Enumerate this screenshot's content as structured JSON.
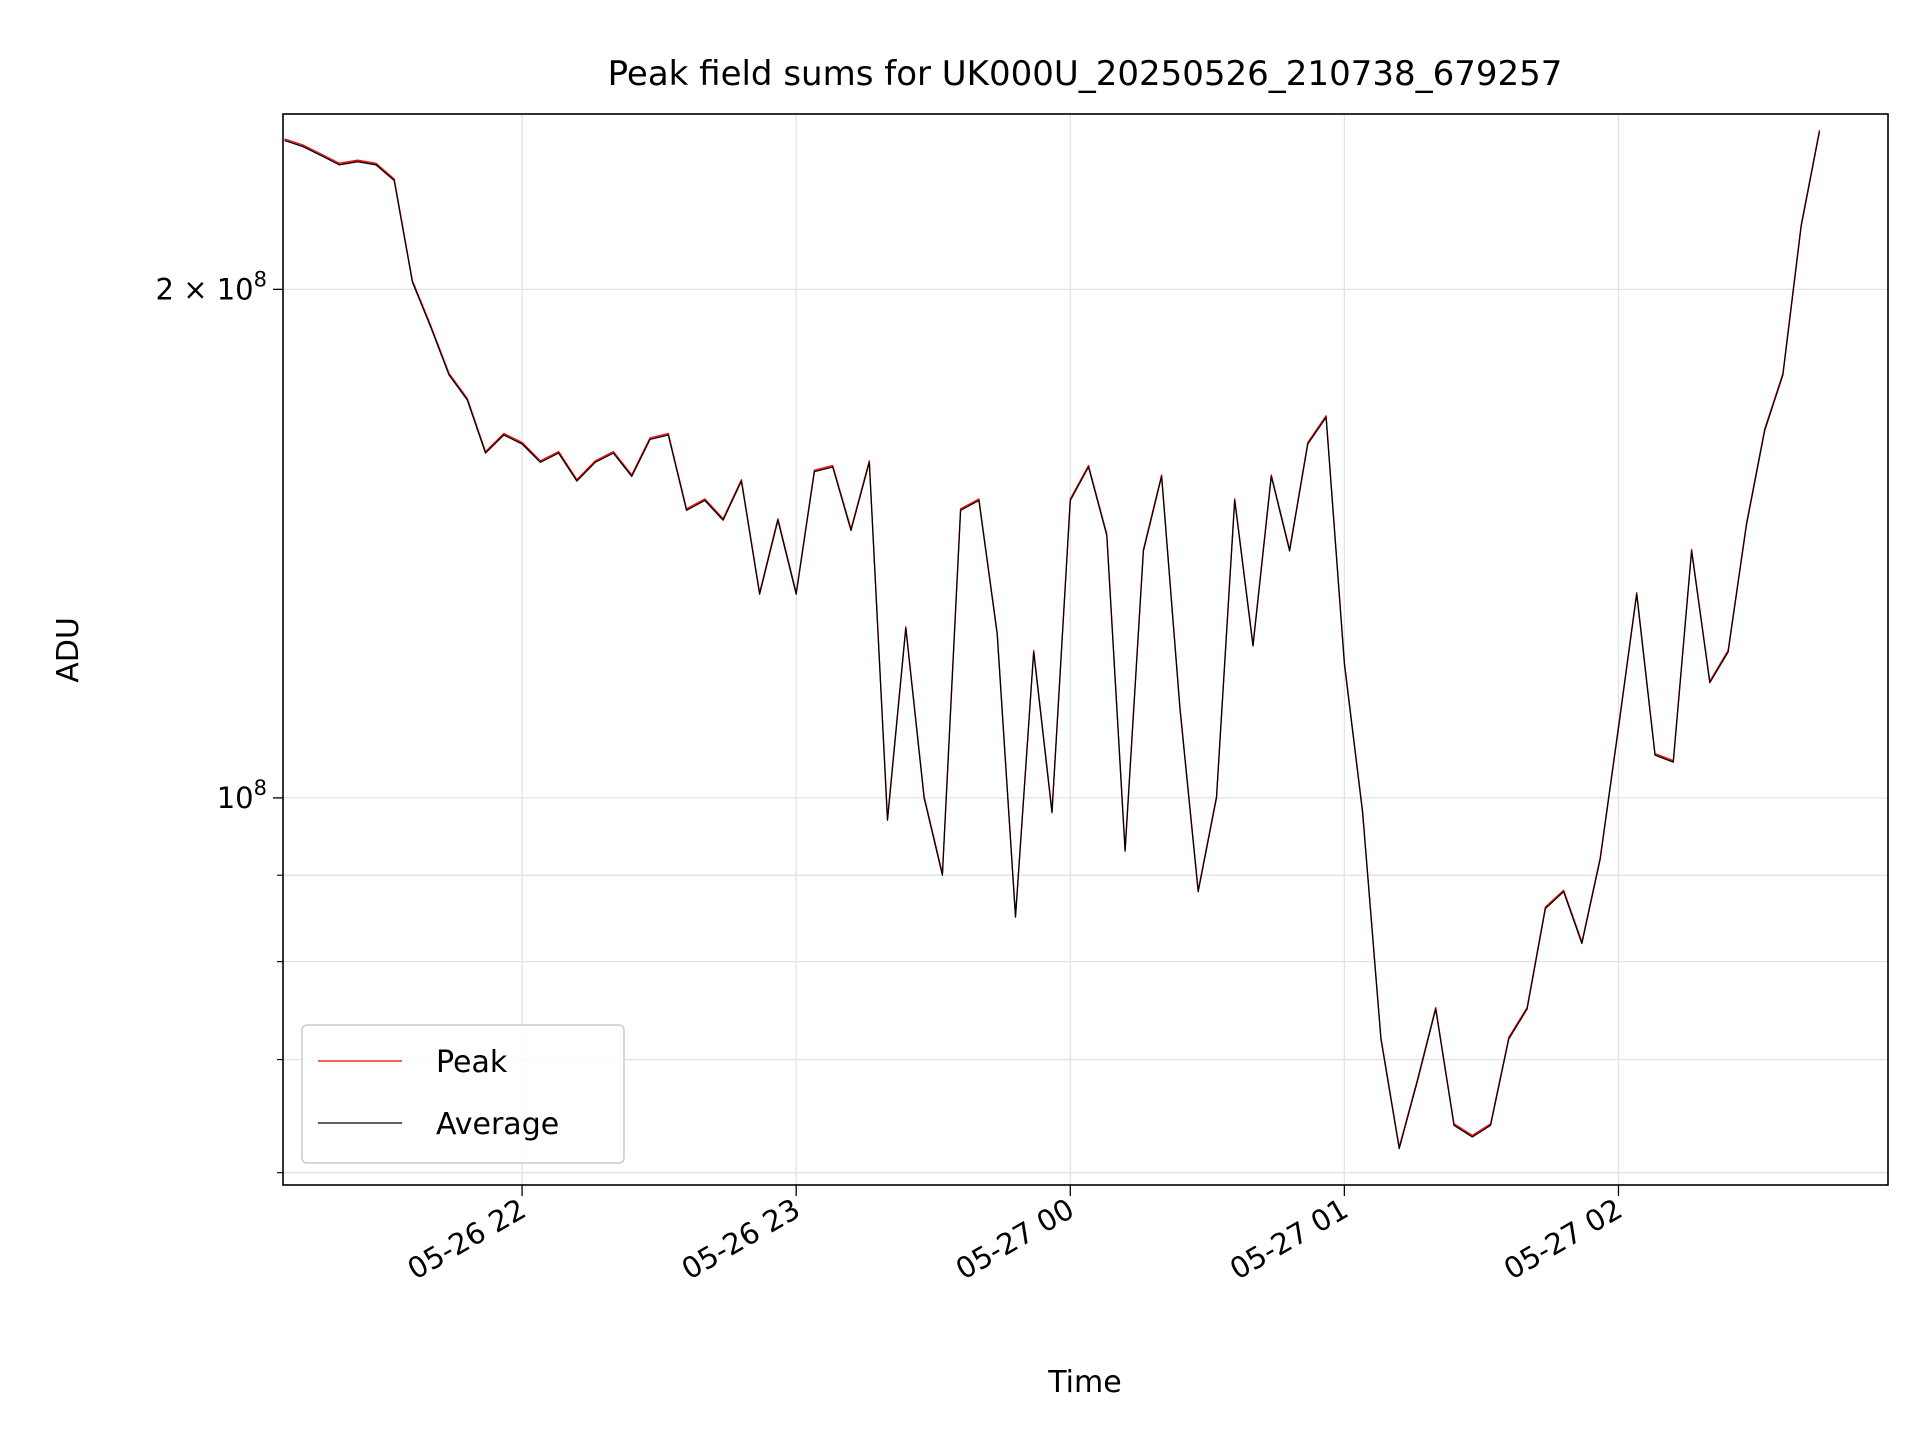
{
  "chart_data": {
    "type": "line",
    "title": "Peak field sums for UK000U_20250526_210738_679257",
    "xlabel": "Time",
    "ylabel": "ADU",
    "y_scale": "log",
    "ylim": [
      59000000,
      254000000
    ],
    "xlim": [
      "2025-05-26 21:07:40",
      "2025-05-27 02:59:00"
    ],
    "grid": true,
    "legend_position": "lower-left",
    "x_ticks": [
      {
        "t": "2025-05-26 22:00",
        "label": "05-26 22"
      },
      {
        "t": "2025-05-26 23:00",
        "label": "05-26 23"
      },
      {
        "t": "2025-05-27 00:00",
        "label": "05-27 00"
      },
      {
        "t": "2025-05-27 01:00",
        "label": "05-27 01"
      },
      {
        "t": "2025-05-27 02:00",
        "label": "05-27 02"
      }
    ],
    "y_major_ticks": [
      {
        "v": 100000000,
        "base": "10",
        "exp": "8",
        "coef": ""
      },
      {
        "v": 200000000,
        "base": "10",
        "exp": "8",
        "coef": "2 × "
      }
    ],
    "y_minor_ticks": [
      60000000,
      70000000,
      80000000,
      90000000
    ],
    "series": [
      {
        "name": "Peak",
        "color": "#ff0000"
      },
      {
        "name": "Average",
        "color": "#000000"
      }
    ],
    "x": [
      "2025-05-26 21:08",
      "2025-05-26 21:12",
      "2025-05-26 21:16",
      "2025-05-26 21:20",
      "2025-05-26 21:24",
      "2025-05-26 21:28",
      "2025-05-26 21:32",
      "2025-05-26 21:36",
      "2025-05-26 21:40",
      "2025-05-26 21:44",
      "2025-05-26 21:48",
      "2025-05-26 21:52",
      "2025-05-26 21:56",
      "2025-05-26 22:00",
      "2025-05-26 22:04",
      "2025-05-26 22:08",
      "2025-05-26 22:12",
      "2025-05-26 22:16",
      "2025-05-26 22:20",
      "2025-05-26 22:24",
      "2025-05-26 22:28",
      "2025-05-26 22:32",
      "2025-05-26 22:36",
      "2025-05-26 22:40",
      "2025-05-26 22:44",
      "2025-05-26 22:48",
      "2025-05-26 22:52",
      "2025-05-26 22:56",
      "2025-05-26 23:00",
      "2025-05-26 23:04",
      "2025-05-26 23:08",
      "2025-05-26 23:12",
      "2025-05-26 23:16",
      "2025-05-26 23:20",
      "2025-05-26 23:24",
      "2025-05-26 23:28",
      "2025-05-26 23:32",
      "2025-05-26 23:36",
      "2025-05-26 23:40",
      "2025-05-26 23:44",
      "2025-05-26 23:48",
      "2025-05-26 23:52",
      "2025-05-26 23:56",
      "2025-05-27 00:00",
      "2025-05-27 00:04",
      "2025-05-27 00:08",
      "2025-05-27 00:12",
      "2025-05-27 00:16",
      "2025-05-27 00:20",
      "2025-05-27 00:24",
      "2025-05-27 00:28",
      "2025-05-27 00:32",
      "2025-05-27 00:36",
      "2025-05-27 00:40",
      "2025-05-27 00:44",
      "2025-05-27 00:48",
      "2025-05-27 00:52",
      "2025-05-27 00:56",
      "2025-05-27 01:00",
      "2025-05-27 01:04",
      "2025-05-27 01:08",
      "2025-05-27 01:12",
      "2025-05-27 01:16",
      "2025-05-27 01:20",
      "2025-05-27 01:24",
      "2025-05-27 01:28",
      "2025-05-27 01:32",
      "2025-05-27 01:36",
      "2025-05-27 01:40",
      "2025-05-27 01:44",
      "2025-05-27 01:48",
      "2025-05-27 01:52",
      "2025-05-27 01:56",
      "2025-05-27 02:00",
      "2025-05-27 02:04",
      "2025-05-27 02:08",
      "2025-05-27 02:12",
      "2025-05-27 02:16",
      "2025-05-27 02:20",
      "2025-05-27 02:24",
      "2025-05-27 02:28",
      "2025-05-27 02:32",
      "2025-05-27 02:36",
      "2025-05-27 02:40",
      "2025-05-27 02:44"
    ],
    "values": {
      "Average": [
        245000000,
        243000000,
        240000000,
        237000000,
        238000000,
        237000000,
        232000000,
        202000000,
        190000000,
        178000000,
        172000000,
        160000000,
        164000000,
        162000000,
        158000000,
        160000000,
        154000000,
        158000000,
        160000000,
        155000000,
        163000000,
        164000000,
        148000000,
        150000000,
        146000000,
        154000000,
        132000000,
        146000000,
        132000000,
        156000000,
        157000000,
        144000000,
        158000000,
        97000000,
        126000000,
        100000000,
        90000000,
        148000000,
        150000000,
        125000000,
        85000000,
        122000000,
        98000000,
        150000000,
        157000000,
        143000000,
        93000000,
        140000000,
        155000000,
        113000000,
        88000000,
        100000000,
        150000000,
        123000000,
        155000000,
        140000000,
        162000000,
        168000000,
        120000000,
        98000000,
        72000000,
        62000000,
        68000000,
        75000000,
        64000000,
        63000000,
        64000000,
        72000000,
        75000000,
        86000000,
        88000000,
        82000000,
        92000000,
        110000000,
        132000000,
        106000000,
        105000000,
        140000000,
        117000000,
        122000000,
        145000000,
        165000000,
        178000000,
        218000000,
        248000000
      ]
    }
  }
}
